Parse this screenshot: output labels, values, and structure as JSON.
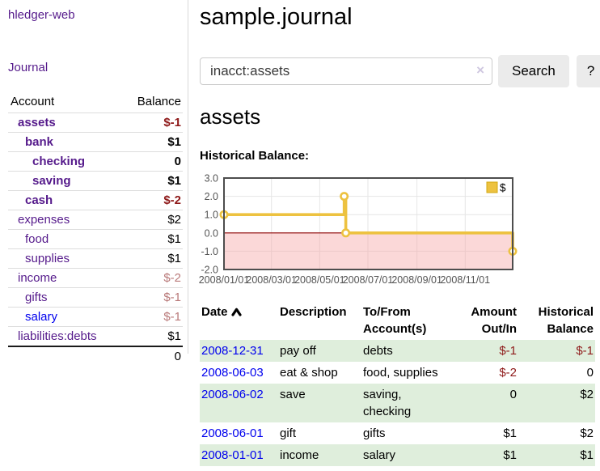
{
  "sidebar": {
    "brand": "hledger-web",
    "nav_journal": "Journal",
    "account_col_header": "Account",
    "balance_col_header": "Balance",
    "accounts": [
      {
        "name": "assets",
        "depth": 0,
        "bold": true,
        "balance": "$-1",
        "balance_tone": "negative",
        "link_color": "purple"
      },
      {
        "name": "bank",
        "depth": 1,
        "bold": true,
        "balance": "$1",
        "balance_tone": "normal",
        "link_color": "purple"
      },
      {
        "name": "checking",
        "depth": 2,
        "bold": true,
        "balance": "0",
        "balance_tone": "normal",
        "link_color": "purple"
      },
      {
        "name": "saving",
        "depth": 2,
        "bold": true,
        "balance": "$1",
        "balance_tone": "normal",
        "link_color": "purple"
      },
      {
        "name": "cash",
        "depth": 1,
        "bold": true,
        "balance": "$-2",
        "balance_tone": "negative",
        "link_color": "purple"
      },
      {
        "name": "expenses",
        "depth": 0,
        "bold": false,
        "balance": "$2",
        "balance_tone": "normal",
        "link_color": "purple"
      },
      {
        "name": "food",
        "depth": 1,
        "bold": false,
        "balance": "$1",
        "balance_tone": "normal",
        "link_color": "purple"
      },
      {
        "name": "supplies",
        "depth": 1,
        "bold": false,
        "balance": "$1",
        "balance_tone": "normal",
        "link_color": "purple"
      },
      {
        "name": "income",
        "depth": 0,
        "bold": false,
        "balance": "$-2",
        "balance_tone": "negative-faded",
        "link_color": "purple"
      },
      {
        "name": "gifts",
        "depth": 1,
        "bold": false,
        "balance": "$-1",
        "balance_tone": "negative-faded",
        "link_color": "purple"
      },
      {
        "name": "salary",
        "depth": 1,
        "bold": false,
        "balance": "$-1",
        "balance_tone": "negative-faded",
        "link_color": "blue"
      },
      {
        "name": "liabilities:debts",
        "depth": 0,
        "bold": false,
        "balance": "$1",
        "balance_tone": "normal",
        "link_color": "purple"
      }
    ],
    "total": "0"
  },
  "main": {
    "title": "sample.journal",
    "account_heading": "assets",
    "chart_label": "Historical Balance:"
  },
  "search": {
    "value": "inacct:assets",
    "clear_label": "×",
    "button_label": "Search",
    "help_label": "?"
  },
  "register": {
    "headers": {
      "date": "Date",
      "description": "Description",
      "accounts": "To/From Account(s)",
      "amount": "Amount Out/In",
      "balance": "Historical Balance"
    },
    "rows": [
      {
        "date": "2008-12-31",
        "description": "pay off",
        "accounts": "debts",
        "amount": "$-1",
        "amount_negative": true,
        "balance": "$-1",
        "balance_negative": true
      },
      {
        "date": "2008-06-03",
        "description": "eat & shop",
        "accounts": "food, supplies",
        "amount": "$-2",
        "amount_negative": true,
        "balance": "0",
        "balance_negative": false
      },
      {
        "date": "2008-06-02",
        "description": "save",
        "accounts": "saving, checking",
        "amount": "0",
        "amount_negative": false,
        "balance": "$2",
        "balance_negative": false
      },
      {
        "date": "2008-06-01",
        "description": "gift",
        "accounts": "gifts",
        "amount": "$1",
        "amount_negative": false,
        "balance": "$2",
        "balance_negative": false
      },
      {
        "date": "2008-01-01",
        "description": "income",
        "accounts": "salary",
        "amount": "$1",
        "amount_negative": false,
        "balance": "$1",
        "balance_negative": false
      }
    ]
  },
  "chart_data": {
    "type": "line",
    "title": "Historical Balance:",
    "style": "step",
    "x_range": [
      "2008/01/01",
      "2008/12/31"
    ],
    "ylim": [
      -2,
      3
    ],
    "y_ticks": [
      3.0,
      2.0,
      1.0,
      0.0,
      -1.0,
      -2.0
    ],
    "x_ticks": [
      "2008/01/01",
      "2008/03/01",
      "2008/05/01",
      "2008/07/01",
      "2008/09/01",
      "2008/11/01"
    ],
    "series": [
      {
        "name": "$",
        "color": "#edc240",
        "points": [
          [
            "2008/01/01",
            1
          ],
          [
            "2008/06/01",
            2
          ],
          [
            "2008/06/03",
            0
          ],
          [
            "2008/12/31",
            -1
          ]
        ]
      }
    ],
    "grid": true,
    "legend_position": "top-right",
    "negative_region_fill": "#f6a3a3",
    "zero_line_color": "#8b0000",
    "border_color": "#4d4d4d",
    "tick_color": "#545454"
  },
  "colors": {
    "link_purple": "#551a8b",
    "link_blue": "#0000ee",
    "negative": "#8e1919",
    "negative_faded": "#b97979",
    "row_stripe": "#dfeedc",
    "series_gold": "#edc240"
  }
}
